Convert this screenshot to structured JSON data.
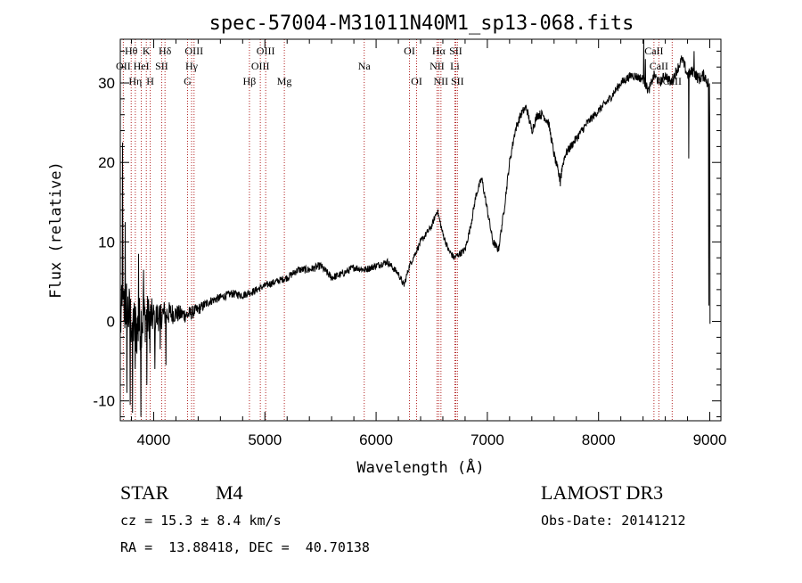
{
  "chart_data": {
    "type": "line",
    "title": "spec-57004-M31011N40M1_sp13-068.fits",
    "xlabel": "Wavelength (Å)",
    "ylabel": "Flux (relative)",
    "xlim": [
      3700,
      9100
    ],
    "ylim": [
      -12.5,
      35.5
    ],
    "xticks": [
      4000,
      5000,
      6000,
      7000,
      8000,
      9000
    ],
    "yticks": [
      -10,
      0,
      10,
      20,
      30
    ],
    "series": [
      {
        "name": "spectrum",
        "anchors": [
          [
            3700,
            0
          ],
          [
            3750,
            2
          ],
          [
            3800,
            0
          ],
          [
            3850,
            -1
          ],
          [
            3900,
            0.5
          ],
          [
            3950,
            0.5
          ],
          [
            4000,
            0.5
          ],
          [
            4100,
            1
          ],
          [
            4200,
            1
          ],
          [
            4300,
            0.8
          ],
          [
            4400,
            1.5
          ],
          [
            4500,
            2.5
          ],
          [
            4600,
            3
          ],
          [
            4700,
            3.5
          ],
          [
            4800,
            3.3
          ],
          [
            4900,
            3.8
          ],
          [
            5000,
            4.5
          ],
          [
            5100,
            5
          ],
          [
            5200,
            5.5
          ],
          [
            5300,
            6.5
          ],
          [
            5400,
            6.5
          ],
          [
            5500,
            7
          ],
          [
            5600,
            5.5
          ],
          [
            5700,
            6
          ],
          [
            5800,
            6.8
          ],
          [
            5900,
            6.5
          ],
          [
            6000,
            7
          ],
          [
            6100,
            7.5
          ],
          [
            6200,
            6
          ],
          [
            6250,
            4.5
          ],
          [
            6300,
            7
          ],
          [
            6400,
            10
          ],
          [
            6500,
            12
          ],
          [
            6550,
            14
          ],
          [
            6600,
            11
          ],
          [
            6650,
            9
          ],
          [
            6700,
            8
          ],
          [
            6750,
            8.5
          ],
          [
            6800,
            9
          ],
          [
            6850,
            12
          ],
          [
            6900,
            16
          ],
          [
            6950,
            18
          ],
          [
            7000,
            14
          ],
          [
            7050,
            10
          ],
          [
            7100,
            9
          ],
          [
            7150,
            14
          ],
          [
            7200,
            20
          ],
          [
            7250,
            24
          ],
          [
            7300,
            26
          ],
          [
            7350,
            27
          ],
          [
            7400,
            24
          ],
          [
            7450,
            26
          ],
          [
            7500,
            26
          ],
          [
            7550,
            25
          ],
          [
            7600,
            21
          ],
          [
            7650,
            18
          ],
          [
            7700,
            21
          ],
          [
            7750,
            22
          ],
          [
            7800,
            23
          ],
          [
            7900,
            25
          ],
          [
            8000,
            26.5
          ],
          [
            8100,
            28
          ],
          [
            8200,
            30
          ],
          [
            8300,
            31
          ],
          [
            8400,
            30.5
          ],
          [
            8450,
            29
          ],
          [
            8500,
            31
          ],
          [
            8550,
            30
          ],
          [
            8600,
            31
          ],
          [
            8650,
            30
          ],
          [
            8700,
            31.5
          ],
          [
            8750,
            33
          ],
          [
            8800,
            31
          ],
          [
            8850,
            31.5
          ],
          [
            8900,
            30.5
          ],
          [
            8950,
            31
          ],
          [
            9000,
            29.5
          ]
        ],
        "noise": [
          [
            3700,
            4.2
          ],
          [
            3900,
            3.6
          ],
          [
            4000,
            2.2
          ],
          [
            4200,
            1.2
          ],
          [
            4500,
            0.55
          ],
          [
            5000,
            0.45
          ],
          [
            5500,
            0.5
          ],
          [
            6000,
            0.45
          ],
          [
            6500,
            0.4
          ],
          [
            7000,
            0.5
          ],
          [
            7500,
            0.6
          ],
          [
            8000,
            0.5
          ],
          [
            8500,
            0.6
          ],
          [
            9000,
            0.8
          ]
        ],
        "spikes": [
          [
            3720,
            22.5
          ],
          [
            3745,
            12.5
          ],
          [
            3760,
            -9
          ],
          [
            3790,
            -10.5
          ],
          [
            3810,
            -11.5
          ],
          [
            3835,
            -6
          ],
          [
            3865,
            8.5
          ],
          [
            3885,
            -12
          ],
          [
            3910,
            6.5
          ],
          [
            3940,
            -8
          ],
          [
            3965,
            -4
          ],
          [
            4010,
            -6
          ],
          [
            4060,
            -3.5
          ],
          [
            4110,
            -5.5
          ],
          [
            7655,
            17
          ],
          [
            7665,
            18
          ],
          [
            8405,
            35.5
          ],
          [
            8420,
            33
          ],
          [
            8810,
            20.5
          ],
          [
            8860,
            34
          ],
          [
            8990,
            2
          ]
        ]
      }
    ],
    "lines": [
      {
        "name": "Hθ",
        "wl": 3798,
        "row": 1
      },
      {
        "name": "OII",
        "wl": 3727,
        "row": 2
      },
      {
        "name": "Hη",
        "wl": 3835,
        "row": 3
      },
      {
        "name": "HeI",
        "wl": 3889,
        "row": 2
      },
      {
        "name": "K",
        "wl": 3934,
        "row": 1
      },
      {
        "name": "H",
        "wl": 3969,
        "row": 3
      },
      {
        "name": "SII",
        "wl": 4072,
        "row": 2
      },
      {
        "name": "Hδ",
        "wl": 4102,
        "row": 1
      },
      {
        "name": "OIII",
        "wl": 4363,
        "row": 1
      },
      {
        "name": "Hγ",
        "wl": 4341,
        "row": 2
      },
      {
        "name": "G",
        "wl": 4305,
        "row": 3
      },
      {
        "name": "Hβ",
        "wl": 4861,
        "row": 3
      },
      {
        "name": "OIII",
        "wl": 5007,
        "row": 1
      },
      {
        "name": "OIII",
        "wl": 4959,
        "row": 2
      },
      {
        "name": "Mg",
        "wl": 5175,
        "row": 3
      },
      {
        "name": "Na",
        "wl": 5893,
        "row": 2
      },
      {
        "name": "OI",
        "wl": 6300,
        "row": 1
      },
      {
        "name": "OI",
        "wl": 6364,
        "row": 3
      },
      {
        "name": "Hα",
        "wl": 6563,
        "row": 1
      },
      {
        "name": "SII",
        "wl": 6716,
        "row": 1
      },
      {
        "name": "NII",
        "wl": 6548,
        "row": 2
      },
      {
        "name": "Li",
        "wl": 6708,
        "row": 2
      },
      {
        "name": "NII",
        "wl": 6583,
        "row": 3
      },
      {
        "name": "SII",
        "wl": 6731,
        "row": 3
      },
      {
        "name": "CaII",
        "wl": 8498,
        "row": 1
      },
      {
        "name": "CaII",
        "wl": 8542,
        "row": 2
      },
      {
        "name": "CaII",
        "wl": 8662,
        "row": 3
      }
    ],
    "line_color": "#b22222"
  },
  "info": {
    "class": "STAR",
    "subclass": "M4",
    "survey": "LAMOST DR3",
    "cz": "cz = 15.3 ± 8.4 km/s",
    "obs_date": "Obs-Date: 20141212",
    "coords": "RA =  13.88418, DEC =  40.70138"
  }
}
